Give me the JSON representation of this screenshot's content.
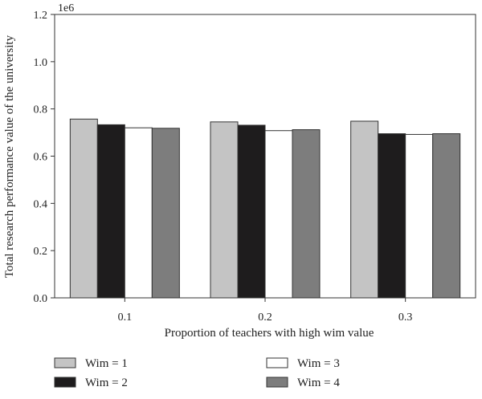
{
  "chart_data": {
    "type": "bar",
    "title": "",
    "xlabel": "Proportion of teachers with high wim value",
    "ylabel": "Total research performance value of the university",
    "y_multiplier": "1e6",
    "ylim": [
      0,
      1.2
    ],
    "yticks": [
      "0.0",
      "0.2",
      "0.4",
      "0.6",
      "0.8",
      "1.0",
      "1.2"
    ],
    "categories": [
      "0.1",
      "0.2",
      "0.3"
    ],
    "series": [
      {
        "name": "Wim = 1",
        "color": "#c4c4c4",
        "values": [
          0.757,
          0.745,
          0.748
        ]
      },
      {
        "name": "Wim = 2",
        "color": "#1e1c1d",
        "values": [
          0.733,
          0.731,
          0.695
        ]
      },
      {
        "name": "Wim = 3",
        "color": "#ffffff",
        "values": [
          0.72,
          0.708,
          0.692
        ]
      },
      {
        "name": "Wim = 4",
        "color": "#7d7d7d",
        "values": [
          0.718,
          0.712,
          0.695
        ]
      }
    ],
    "grid": false,
    "legend_position": "bottom"
  }
}
